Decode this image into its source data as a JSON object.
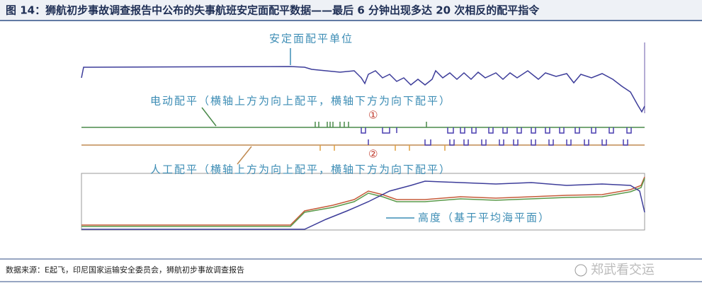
{
  "header": {
    "title": "图 14：狮航初步事故调查报告中公布的失事航班安定面配平数据——最后 6 分钟出现多达 20 次相反的配平指令"
  },
  "annotations": {
    "trim_units": "安定面配平单位",
    "electric_trim": "电动配平（横轴上方为向上配平，横轴下方为向下配平）",
    "marker_1": "①",
    "marker_2": "②",
    "manual_trim": "人工配平（横轴上方为向上配平，横轴下方为向下配平）",
    "altitude": "高度（基于平均海平面）"
  },
  "footer": {
    "source": "数据来源：E起飞，印尼国家运输安全委员会，狮航初步事故调查报告",
    "watermark": "郑武看交运"
  }
}
